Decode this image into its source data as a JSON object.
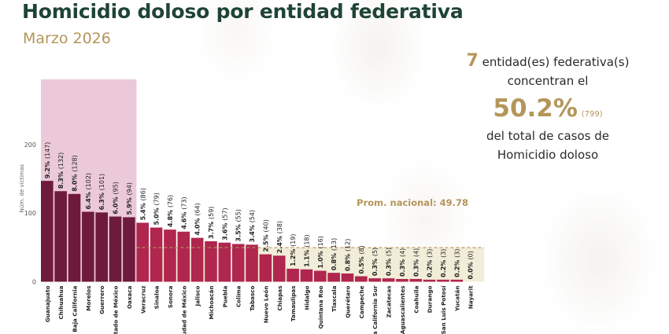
{
  "header": {
    "title": "Homicidio doloso por entidad federativa",
    "subtitle": "Marzo 2026"
  },
  "callout": {
    "count": "7",
    "count_suffix": "entidad(es) federativa(s)",
    "line2": "concentran el",
    "percent": "50.2%",
    "cases": "(799)",
    "line4": "del total de casos de",
    "line5": "Homicidio doloso"
  },
  "colors": {
    "highlight_bar": "#6e1a3c",
    "bar": "#b0264e",
    "highlight_band": "#e8c0d1",
    "below_avg_band": "#f1edd8",
    "avg_line": "#b4955a",
    "title": "#1f4436",
    "accent": "#b4955a"
  },
  "chart_data": {
    "type": "bar",
    "ylabel": "Núm. de víctimas",
    "yticks": [
      0,
      100,
      200
    ],
    "ylim": [
      0,
      200
    ],
    "average": {
      "label": "Prom. nacional: 49.78",
      "value": 49.78
    },
    "highlight_count": 7,
    "categories": [
      "Guanajuato",
      "Chihuahua",
      "Baja California",
      "Morelos",
      "Guerrero",
      "Estado de México",
      "Oaxaca",
      "Veracruz",
      "Sinaloa",
      "Sonora",
      "Ciudad de México",
      "Jalisco",
      "Michoacán",
      "Puebla",
      "Colima",
      "Tabasco",
      "Nuevo León",
      "Chiapas",
      "Tamaulipas",
      "Hidalgo",
      "Quintana Roo",
      "Tlaxcala",
      "Querétaro",
      "Campeche",
      "Baja California Sur",
      "Zacatecas",
      "Aguascalientes",
      "Coahuila",
      "Durango",
      "San Luis Potosí",
      "Yucatán",
      "Nayarit"
    ],
    "values": [
      147,
      132,
      128,
      102,
      101,
      95,
      94,
      86,
      79,
      76,
      73,
      64,
      59,
      57,
      55,
      54,
      40,
      38,
      19,
      18,
      16,
      13,
      12,
      8,
      5,
      5,
      4,
      4,
      3,
      3,
      3,
      0
    ],
    "labels": [
      "9.2% (147)",
      "8.3% (132)",
      "8.0% (128)",
      "6.4% (102)",
      "6.3% (101)",
      "6.0% (95)",
      "5.9% (94)",
      "5.4% (86)",
      "5.0% (79)",
      "4.8% (76)",
      "4.6% (73)",
      "4.0% (64)",
      "3.7% (59)",
      "3.6% (57)",
      "3.5% (55)",
      "3.4% (54)",
      "2.5% (40)",
      "2.4% (38)",
      "1.2% (19)",
      "1.1% (18)",
      "1.0% (16)",
      "0.8% (13)",
      "0.8% (12)",
      "0.5% (8)",
      "0.3% (5)",
      "0.3% (5)",
      "0.3% (4)",
      "0.3% (4)",
      "0.2% (3)",
      "0.2% (3)",
      "0.2% (3)",
      "0.0% (0)"
    ]
  }
}
